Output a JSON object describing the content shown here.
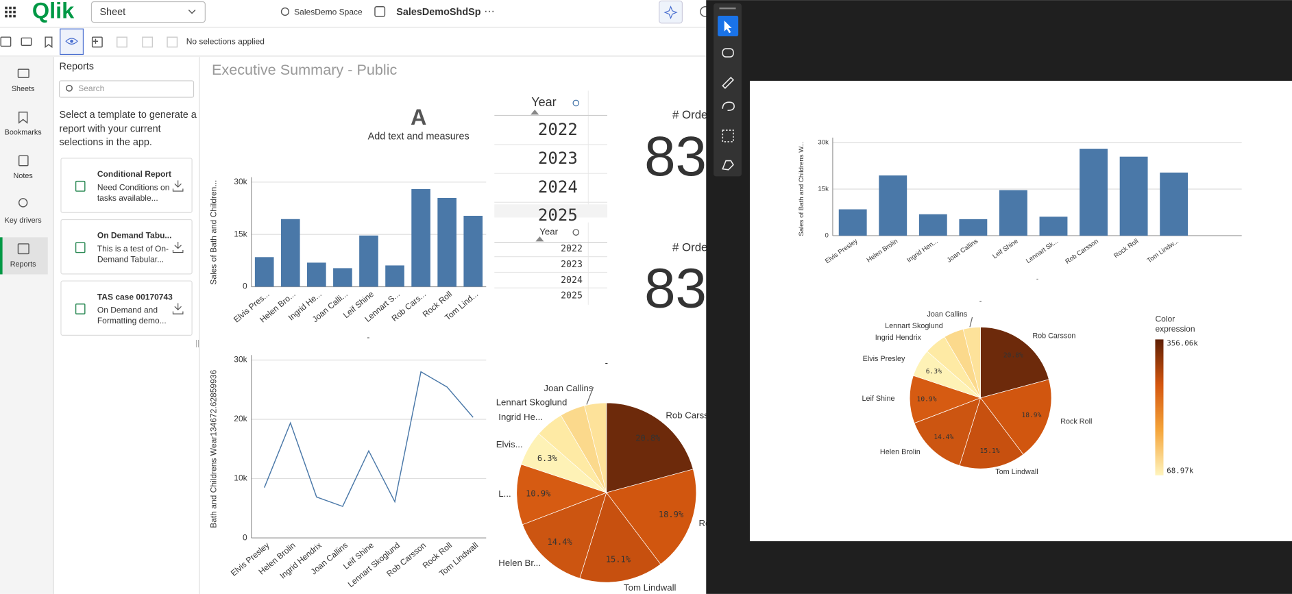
{
  "header": {
    "logo": "Qlik",
    "sheet_dropdown": "Sheet",
    "space": "SalesDemo Space",
    "app": "SalesDemoShdSp",
    "more": "···"
  },
  "toolbar": {
    "selections": "No selections applied"
  },
  "nav": [
    "Sheets",
    "Bookmarks",
    "Notes",
    "Key drivers",
    "Reports"
  ],
  "reports": {
    "title": "Reports",
    "search": "Search",
    "description": [
      "Select a template to generate a",
      "report with your current",
      "selections in the app."
    ],
    "cards": [
      {
        "title": "Conditional Report",
        "text": [
          "Need Conditions on",
          "tasks available..."
        ]
      },
      {
        "title": "On Demand Tabu...",
        "text": [
          "This is a test of On-",
          "Demand Tabular..."
        ]
      },
      {
        "title": "TAS case 00170743",
        "text": [
          "On Demand and",
          "Formatting demo..."
        ]
      }
    ]
  },
  "sheet": {
    "title": "Executive Summary - Public",
    "text_object": {
      "icon": "A",
      "label": "Add text and measures"
    },
    "year_filters": [
      {
        "title": "Year",
        "values": [
          2022,
          2023,
          2024,
          2025
        ]
      },
      {
        "title": "Year",
        "values": [
          2022,
          2023,
          2024,
          2025
        ]
      }
    ],
    "kpis": [
      {
        "label": "# Orde",
        "value": 83
      },
      {
        "label": "# Orde",
        "value": 83
      }
    ]
  },
  "chart_data": [
    {
      "type": "bar",
      "y_label": "Sales of Bath and Children...",
      "x_label": "-",
      "categories": [
        "Elvis Pres...",
        "Helen Bro...",
        "Ingrid He...",
        "Joan Calli...",
        "Leif Shine",
        "Lennart S...",
        "Rob Cars...",
        "Rock Roll",
        "Tom Lind..."
      ],
      "values": [
        8484,
        19393,
        6900,
        5316,
        14679,
        6100,
        28012,
        25453,
        20335
      ],
      "color": "#4a78a8",
      "ylim": [
        0,
        30000
      ],
      "yticks": [
        0,
        {
          "value": 15000,
          "label": "15k"
        },
        {
          "value": 30000,
          "label": "30k"
        }
      ],
      "grid": true
    },
    {
      "type": "line",
      "y_label": "Bath and Childrens Wear134672.62859936",
      "categories": [
        "Elvis Presley",
        "Helen Brolin",
        "Ingrid Hendrix",
        "Joan Callins",
        "Leif Shine",
        "Lennart Skoglund",
        "Rob Carsson",
        "Rock Roll",
        "Tom Lindwall"
      ],
      "values": [
        8484,
        19393,
        6900,
        5316,
        14679,
        6100,
        28012,
        25453,
        20335
      ],
      "color": "#4a78a8",
      "ylim": [
        0,
        30000
      ],
      "yticks": [
        0,
        {
          "value": 10000,
          "label": "10k"
        },
        {
          "value": 20000,
          "label": "20k"
        },
        {
          "value": 30000,
          "label": "30k"
        }
      ],
      "grid": true
    },
    {
      "type": "pie",
      "title": "-",
      "categories": [
        "Rob Carsson",
        "Rock Roll",
        "Tom Lindwall",
        "Helen Br...",
        "L...",
        "Elvis...",
        "Ingrid He...",
        "Lennart Skoglund",
        "Joan Callins"
      ],
      "values": [
        28012,
        25453,
        20335,
        19393,
        14679,
        8484,
        6900,
        6100,
        5316
      ],
      "value_labels": [
        "20.8%",
        "18.9%",
        "15.1%",
        "14.4%",
        "10.9%",
        "6.3%",
        null,
        null,
        null
      ],
      "colors": [
        "#6d2a0b",
        "#d1560f",
        "#c7500f",
        "#cc5511",
        "#d65b12",
        "#fef2b6",
        "#feeaa4",
        "#fbd98c",
        "#fde29a"
      ]
    },
    {
      "type": "bar",
      "y_label": "Sales of Bath and Childrens W...",
      "x_label": "-",
      "categories": [
        "Elvis Presley",
        "Helen Brolin",
        "Ingrid Hen...",
        "Joan Callins",
        "Leif Shine",
        "Lennart Sk...",
        "Rob Carsson",
        "Rock Roll",
        "Tom Lindw..."
      ],
      "values": [
        8484,
        19393,
        6900,
        5316,
        14679,
        6100,
        28012,
        25453,
        20335
      ],
      "color": "#4a78a8",
      "ylim": [
        0,
        30000
      ],
      "yticks": [
        0,
        {
          "value": 15000,
          "label": "15k"
        },
        {
          "value": 30000,
          "label": "30k"
        }
      ],
      "grid": true
    },
    {
      "type": "pie",
      "title": "-",
      "categories": [
        "Rob Carsson",
        "Rock Roll",
        "Tom Lindwall",
        "Helen Brolin",
        "Leif Shine",
        "Elvis Presley",
        "Ingrid Hendrix",
        "Lennart Skoglund",
        "Joan Callins"
      ],
      "values": [
        28012,
        25453,
        20335,
        19393,
        14679,
        8484,
        6900,
        6100,
        5316
      ],
      "value_labels": [
        "20.8%",
        "18.9%",
        "15.1%",
        "14.4%",
        "10.9%",
        "6.3%",
        null,
        null,
        null
      ],
      "colors": [
        "#6d2a0b",
        "#d1560f",
        "#c7500f",
        "#cc5511",
        "#d65b12",
        "#fef2b6",
        "#feeaa4",
        "#fbd98c",
        "#fde29a"
      ],
      "color_legend": {
        "title": [
          "Color",
          "expression"
        ],
        "max_label": "356.06k",
        "min_label": "68.97k",
        "colors": [
          "#5e1f05",
          "#d4560f",
          "#f5a53a",
          "#fff4bd"
        ]
      }
    }
  ]
}
